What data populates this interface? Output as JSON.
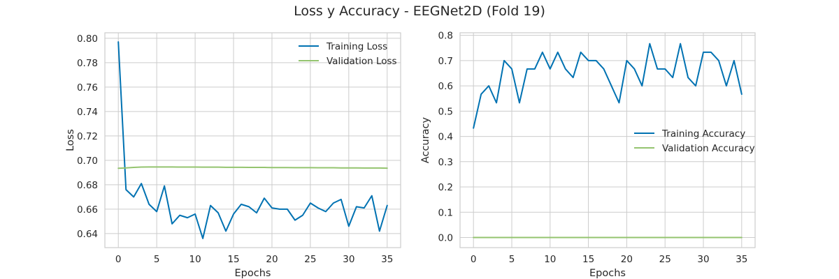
{
  "figure": {
    "title": "Loss y Accuracy - EEGNet2D (Fold 19)"
  },
  "colors": {
    "training": "#0072b2",
    "validation": "#94c46f",
    "grid": "#cccccc",
    "spine": "#cccccc"
  },
  "chart_data": [
    {
      "type": "line",
      "xlabel": "Epochs",
      "ylabel": "Loss",
      "xlim": [
        -1.75,
        36.75
      ],
      "ylim": [
        0.6285,
        0.8045
      ],
      "xticks": [
        0,
        5,
        10,
        15,
        20,
        25,
        30,
        35
      ],
      "yticks": [
        0.64,
        0.66,
        0.68,
        0.7,
        0.72,
        0.74,
        0.76,
        0.78,
        0.8
      ],
      "ytick_labels": [
        "0.64",
        "0.66",
        "0.68",
        "0.70",
        "0.72",
        "0.74",
        "0.76",
        "0.78",
        "0.80"
      ],
      "grid": true,
      "legend_position": "top-right",
      "series": [
        {
          "name": "Training Loss",
          "color": "#0072b2",
          "x": [
            0,
            1,
            2,
            3,
            4,
            5,
            6,
            7,
            8,
            9,
            10,
            11,
            12,
            13,
            14,
            15,
            16,
            17,
            18,
            19,
            20,
            21,
            22,
            23,
            24,
            25,
            26,
            27,
            28,
            29,
            30,
            31,
            32,
            33,
            34,
            35
          ],
          "values": [
            0.797,
            0.676,
            0.67,
            0.681,
            0.664,
            0.658,
            0.679,
            0.648,
            0.655,
            0.653,
            0.656,
            0.636,
            0.663,
            0.657,
            0.642,
            0.656,
            0.664,
            0.662,
            0.657,
            0.669,
            0.661,
            0.66,
            0.66,
            0.651,
            0.655,
            0.665,
            0.661,
            0.658,
            0.665,
            0.668,
            0.646,
            0.662,
            0.661,
            0.671,
            0.642,
            0.663
          ]
        },
        {
          "name": "Validation Loss",
          "color": "#94c46f",
          "x": [
            0,
            1,
            2,
            3,
            4,
            5,
            6,
            7,
            8,
            9,
            10,
            11,
            12,
            13,
            14,
            15,
            16,
            17,
            18,
            19,
            20,
            21,
            22,
            23,
            24,
            25,
            26,
            27,
            28,
            29,
            30,
            31,
            32,
            33,
            34,
            35
          ],
          "values": [
            0.6935,
            0.6938,
            0.6942,
            0.6945,
            0.6946,
            0.6946,
            0.6946,
            0.6946,
            0.6945,
            0.6945,
            0.6945,
            0.6944,
            0.6944,
            0.6944,
            0.6943,
            0.6943,
            0.6943,
            0.6942,
            0.6942,
            0.6942,
            0.6941,
            0.6941,
            0.6941,
            0.694,
            0.694,
            0.694,
            0.6939,
            0.6939,
            0.6939,
            0.6938,
            0.6938,
            0.6938,
            0.6937,
            0.6937,
            0.6937,
            0.6936
          ]
        }
      ]
    },
    {
      "type": "line",
      "xlabel": "Epochs",
      "ylabel": "Accuracy",
      "xlim": [
        -1.75,
        36.75
      ],
      "ylim": [
        -0.04,
        0.81
      ],
      "xticks": [
        0,
        5,
        10,
        15,
        20,
        25,
        30,
        35
      ],
      "yticks": [
        0.0,
        0.1,
        0.2,
        0.3,
        0.4,
        0.5,
        0.6,
        0.7,
        0.8
      ],
      "ytick_labels": [
        "0.0",
        "0.1",
        "0.2",
        "0.3",
        "0.4",
        "0.5",
        "0.6",
        "0.7",
        "0.8"
      ],
      "grid": true,
      "legend_position": "center-right",
      "series": [
        {
          "name": "Training Accuracy",
          "color": "#0072b2",
          "x": [
            0,
            1,
            2,
            3,
            4,
            5,
            6,
            7,
            8,
            9,
            10,
            11,
            12,
            13,
            14,
            15,
            16,
            17,
            18,
            19,
            20,
            21,
            22,
            23,
            24,
            25,
            26,
            27,
            28,
            29,
            30,
            31,
            32,
            33,
            34,
            35
          ],
          "values": [
            0.433,
            0.567,
            0.6,
            0.533,
            0.7,
            0.667,
            0.533,
            0.667,
            0.667,
            0.733,
            0.667,
            0.733,
            0.667,
            0.633,
            0.733,
            0.7,
            0.7,
            0.667,
            0.6,
            0.533,
            0.7,
            0.667,
            0.6,
            0.767,
            0.667,
            0.667,
            0.633,
            0.767,
            0.633,
            0.6,
            0.733,
            0.733,
            0.7,
            0.6,
            0.7,
            0.567
          ]
        },
        {
          "name": "Validation Accuracy",
          "color": "#94c46f",
          "x": [
            0,
            1,
            2,
            3,
            4,
            5,
            6,
            7,
            8,
            9,
            10,
            11,
            12,
            13,
            14,
            15,
            16,
            17,
            18,
            19,
            20,
            21,
            22,
            23,
            24,
            25,
            26,
            27,
            28,
            29,
            30,
            31,
            32,
            33,
            34,
            35
          ],
          "values": [
            0,
            0,
            0,
            0,
            0,
            0,
            0,
            0,
            0,
            0,
            0,
            0,
            0,
            0,
            0,
            0,
            0,
            0,
            0,
            0,
            0,
            0,
            0,
            0,
            0,
            0,
            0,
            0,
            0,
            0,
            0,
            0,
            0,
            0,
            0,
            0
          ]
        }
      ]
    }
  ]
}
